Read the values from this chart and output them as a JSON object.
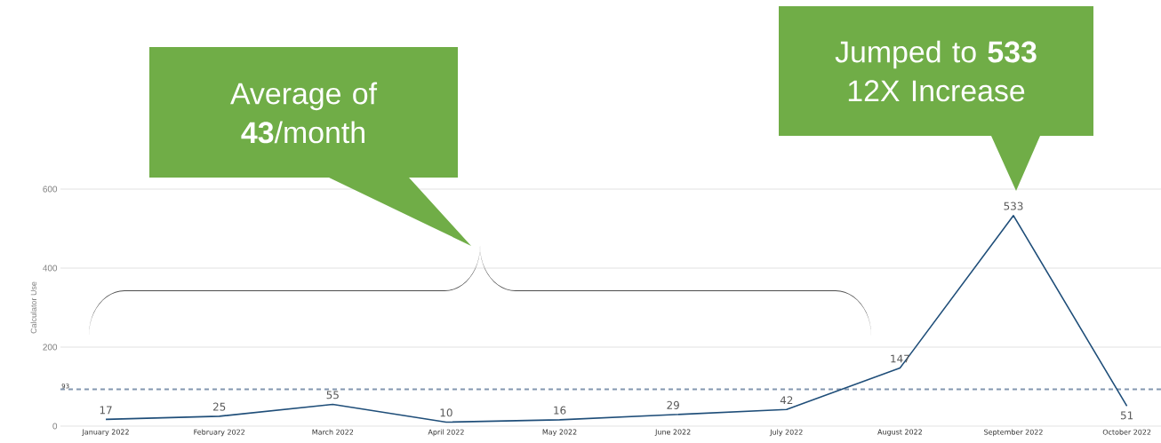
{
  "chart_data": {
    "type": "line",
    "ylabel": "Calculator Use",
    "categories": [
      "January 2022",
      "February 2022",
      "March 2022",
      "April 2022",
      "May 2022",
      "June 2022",
      "July 2022",
      "August 2022",
      "September 2022",
      "October 2022"
    ],
    "values": [
      17,
      25,
      55,
      10,
      16,
      29,
      42,
      147,
      533,
      51
    ],
    "color": "#1f4e79",
    "marker": "none",
    "line_style": "solid",
    "ylim": [
      0,
      600
    ],
    "yticks": [
      0,
      200,
      400,
      600
    ],
    "grid": "y",
    "data_labels": true,
    "ref_lines": [
      {
        "axis": "y",
        "value": 93,
        "label": "93",
        "color": "#8497b0",
        "line_style": "dashed"
      }
    ],
    "annotations": [
      "Average of **43**/month",
      "Jumped to **533** 12X Increase"
    ]
  }
}
